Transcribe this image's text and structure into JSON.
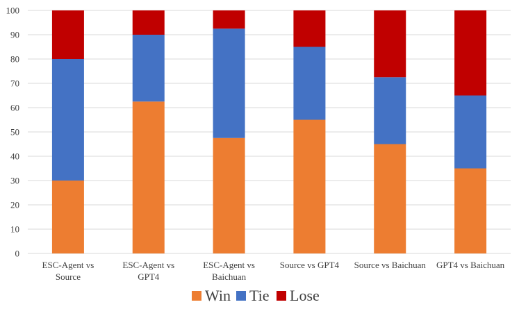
{
  "chart_data": {
    "type": "bar",
    "stacked": true,
    "categories": [
      [
        "ESC-Agent vs",
        "Source"
      ],
      [
        "ESC-Agent vs",
        "GPT4"
      ],
      [
        "ESC-Agent vs",
        "Baichuan"
      ],
      [
        "Source vs GPT4"
      ],
      [
        "Source vs Baichuan"
      ],
      [
        "GPT4 vs Baichuan"
      ]
    ],
    "series": [
      {
        "name": "Win",
        "color": "#ED7D31",
        "values": [
          30,
          62.5,
          47.5,
          55,
          45,
          35
        ]
      },
      {
        "name": "Tie",
        "color": "#4472C4",
        "values": [
          50,
          27.5,
          45,
          30,
          27.5,
          30
        ]
      },
      {
        "name": "Lose",
        "color": "#C00000",
        "values": [
          20,
          10,
          7.5,
          15,
          27.5,
          35
        ]
      }
    ],
    "ylim": [
      0,
      100
    ],
    "yticks": [
      0,
      10,
      20,
      30,
      40,
      50,
      60,
      70,
      80,
      90,
      100
    ],
    "grid": true,
    "legend": "bottom-center",
    "title": "",
    "xlabel": "",
    "ylabel": ""
  }
}
